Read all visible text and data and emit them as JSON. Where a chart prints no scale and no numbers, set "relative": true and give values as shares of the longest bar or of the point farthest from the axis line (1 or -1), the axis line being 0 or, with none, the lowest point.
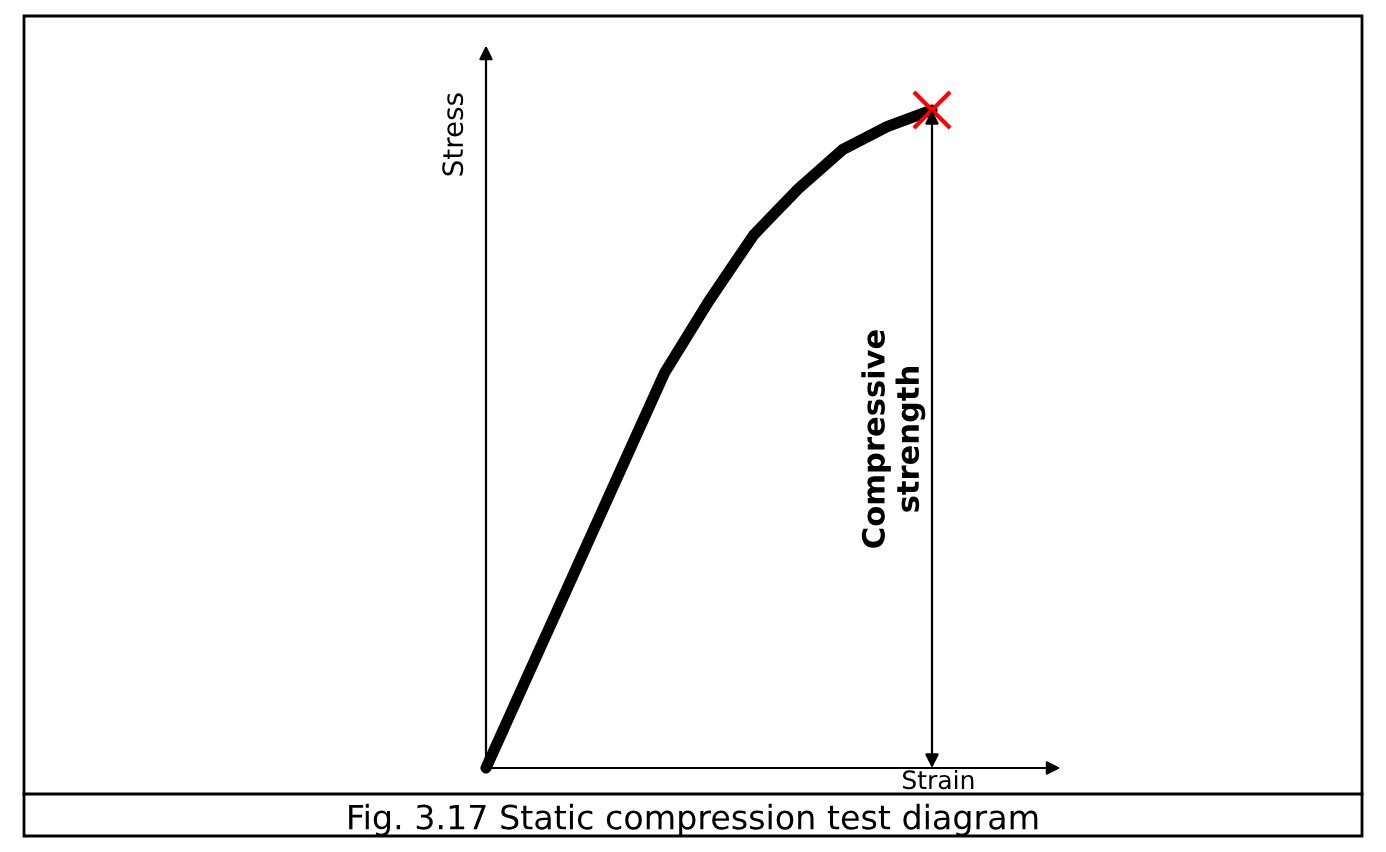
{
  "chart_data": {
    "type": "line",
    "relative": true,
    "xlabel": "Strain",
    "ylabel": "Stress",
    "categories": [
      null,
      null,
      null,
      null,
      null,
      null,
      null,
      null,
      null,
      null,
      null
    ],
    "series": [
      {
        "color": "#000000",
        "values": [
          0,
          0.15,
          0.3,
          0.45,
          0.6,
          0.71,
          0.81,
          0.88,
          0.94,
          0.975,
          1.0
        ]
      }
    ],
    "annotations": [
      "Compressive\nstrength",
      "Fig. 3.17 Static compression test diagram"
    ],
    "legend": false,
    "marker": "none",
    "line_style": "solid"
  }
}
